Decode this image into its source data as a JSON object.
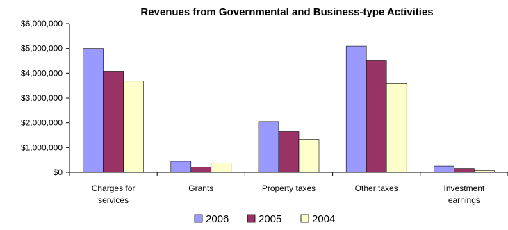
{
  "chart_data": {
    "type": "bar",
    "title": "Revenues from Governmental and Business-type Activities",
    "categories": [
      [
        "Charges for",
        "services"
      ],
      [
        "Grants"
      ],
      [
        "Property taxes"
      ],
      [
        "Other taxes"
      ],
      [
        "Investment",
        "earnings"
      ]
    ],
    "series": [
      {
        "name": "2006",
        "color": "#9999ff",
        "values": [
          5000000,
          450000,
          2050000,
          5100000,
          250000
        ]
      },
      {
        "name": "2005",
        "color": "#993366",
        "values": [
          4080000,
          210000,
          1640000,
          4500000,
          150000
        ]
      },
      {
        "name": "2004",
        "color": "#ffffcc",
        "values": [
          3680000,
          380000,
          1330000,
          3580000,
          70000
        ]
      }
    ],
    "ylim": [
      0,
      6000000
    ],
    "yticks": [
      0,
      1000000,
      2000000,
      3000000,
      4000000,
      5000000,
      6000000
    ],
    "ytick_labels": [
      "$0",
      "$1,000,000",
      "$2,000,000",
      "$3,000,000",
      "$4,000,000",
      "$5,000,000",
      "$6,000,000"
    ],
    "grid": false,
    "legend_position": "bottom"
  }
}
